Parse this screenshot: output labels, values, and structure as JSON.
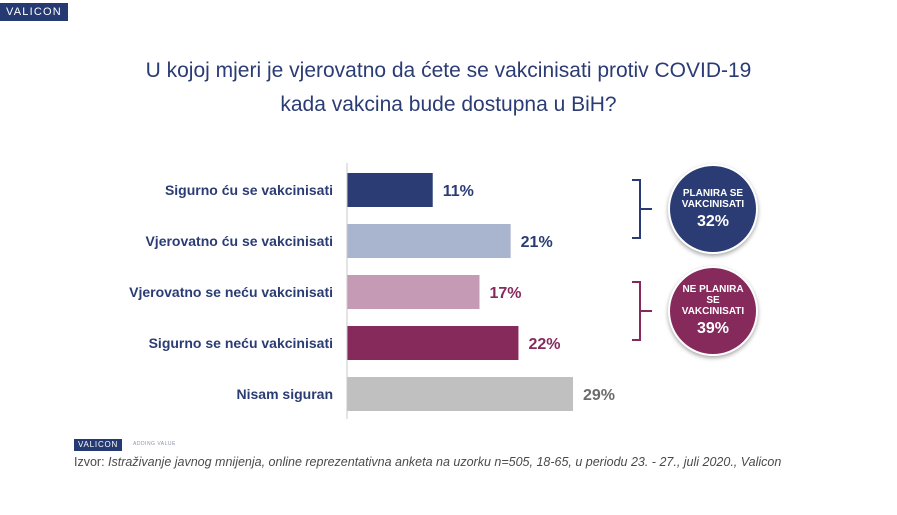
{
  "header": {
    "logo": "VALICON"
  },
  "title": {
    "line1": "U kojoj mjeri je vjerovatno da ćete se vakcinisati protiv COVID-19",
    "line2": "kada vakcina bude dostupna u BiH?"
  },
  "chart_data": {
    "type": "bar",
    "orientation": "horizontal",
    "categories": [
      "Sigurno ću se vakcinisati",
      "Vjerovatno ću se vakcinisati",
      "Vjerovatno se neću vakcinisati",
      "Sigurno se neću vakcinisati",
      "Nisam siguran"
    ],
    "values": [
      11,
      21,
      17,
      22,
      29
    ],
    "value_labels": [
      "11%",
      "21%",
      "17%",
      "22%",
      "29%"
    ],
    "bar_colors": [
      "#2b3c74",
      "#a9b5cf",
      "#c49ab4",
      "#862a5c",
      "#c0c0c0"
    ],
    "label_colors": [
      "#2b3c74",
      "#2b3c74",
      "#862a5c",
      "#862a5c",
      "#6b6b6b"
    ],
    "xlim": [
      0,
      29
    ],
    "grid": false,
    "groups": [
      {
        "label": "PLANIRA SE VAKCINISATI",
        "value": "32%",
        "color": "#2b3c74"
      },
      {
        "label": "NE PLANIRA SE VAKCINISATI",
        "value": "39%",
        "color": "#862a5c"
      }
    ]
  },
  "footer": {
    "logo": "VALICON",
    "tagline": "ADDING VALUE",
    "source_prefix": "Izvor: ",
    "source_text": "Istraživanje javnog mnijenja, online reprezentativna anketa na uzorku n=505, 18-65, u periodu 23. - 27., juli 2020., Valicon"
  }
}
